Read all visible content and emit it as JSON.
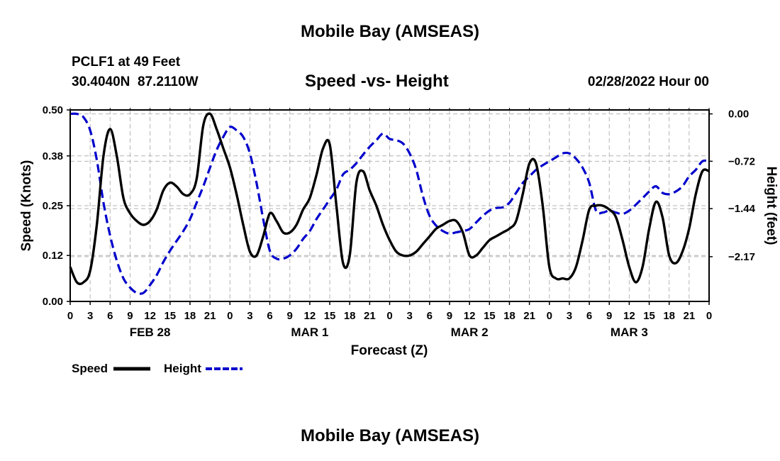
{
  "header": {
    "title": "Mobile Bay (AMSEAS)",
    "station": "PCLF1 at 49 Feet",
    "coords": "30.4040N  87.2110W",
    "subtitle": "Speed -vs- Height",
    "datetime": "02/28/2022 Hour 00"
  },
  "footer": {
    "title": "Mobile Bay (AMSEAS)"
  },
  "colors": {
    "speed": "#000000",
    "height": "#0000cc",
    "grid": "#b4b4b4"
  },
  "chart_data": {
    "type": "line",
    "title": "Speed -vs- Height",
    "xlabel": "Forecast (Z)",
    "ylabel": "Speed (Knots)",
    "y2label": "Height (feet)",
    "x_range_hours": [
      0,
      96
    ],
    "ylim": [
      0,
      0.5
    ],
    "y2lim": [
      -2.85,
      0.06
    ],
    "yticks": [
      0.0,
      0.12,
      0.25,
      0.38,
      0.5
    ],
    "ytick_labels": [
      "0.00",
      "0.12",
      "0.25",
      "0.38",
      "0.50"
    ],
    "y2ticks": [
      0.0,
      -0.72,
      -1.44,
      -2.17
    ],
    "y2tick_labels": [
      "0.00",
      "−0.72",
      "−1.44",
      "−2.17"
    ],
    "xtick_hours": [
      0,
      3,
      6,
      9,
      12,
      15,
      18,
      21,
      24,
      27,
      30,
      33,
      36,
      39,
      42,
      45,
      48,
      51,
      54,
      57,
      60,
      63,
      66,
      69,
      72,
      75,
      78,
      81,
      84,
      87,
      90,
      93,
      96
    ],
    "xtick_labels": [
      "0",
      "3",
      "6",
      "9",
      "12",
      "15",
      "18",
      "21",
      "0",
      "3",
      "6",
      "9",
      "12",
      "15",
      "18",
      "21",
      "0",
      "3",
      "6",
      "9",
      "12",
      "15",
      "18",
      "21",
      "0",
      "3",
      "6",
      "9",
      "12",
      "15",
      "18",
      "21",
      "0"
    ],
    "day_labels": [
      {
        "hour": 12,
        "label": "FEB 28"
      },
      {
        "hour": 36,
        "label": "MAR 1"
      },
      {
        "hour": 60,
        "label": "MAR 2"
      },
      {
        "hour": 84,
        "label": "MAR 3"
      }
    ],
    "legend": [
      {
        "name": "Speed",
        "style": "solid"
      },
      {
        "name": "Height",
        "style": "dashed"
      }
    ],
    "series": [
      {
        "name": "Speed",
        "axis": "left",
        "style": "solid",
        "points": [
          [
            0,
            0.09
          ],
          [
            1,
            0.05
          ],
          [
            2,
            0.05
          ],
          [
            3,
            0.08
          ],
          [
            4,
            0.2
          ],
          [
            5,
            0.38
          ],
          [
            6,
            0.45
          ],
          [
            7,
            0.38
          ],
          [
            8,
            0.27
          ],
          [
            9,
            0.23
          ],
          [
            10,
            0.21
          ],
          [
            11,
            0.2
          ],
          [
            12,
            0.21
          ],
          [
            13,
            0.24
          ],
          [
            14,
            0.29
          ],
          [
            15,
            0.31
          ],
          [
            16,
            0.3
          ],
          [
            17,
            0.28
          ],
          [
            18,
            0.28
          ],
          [
            19,
            0.32
          ],
          [
            20,
            0.46
          ],
          [
            21,
            0.49
          ],
          [
            22,
            0.45
          ],
          [
            23,
            0.4
          ],
          [
            24,
            0.35
          ],
          [
            25,
            0.28
          ],
          [
            26,
            0.2
          ],
          [
            27,
            0.13
          ],
          [
            28,
            0.12
          ],
          [
            29,
            0.17
          ],
          [
            30,
            0.23
          ],
          [
            31,
            0.21
          ],
          [
            32,
            0.18
          ],
          [
            33,
            0.18
          ],
          [
            34,
            0.2
          ],
          [
            35,
            0.24
          ],
          [
            36,
            0.27
          ],
          [
            37,
            0.33
          ],
          [
            38,
            0.4
          ],
          [
            39,
            0.41
          ],
          [
            40,
            0.25
          ],
          [
            41,
            0.1
          ],
          [
            42,
            0.12
          ],
          [
            43,
            0.31
          ],
          [
            44,
            0.34
          ],
          [
            45,
            0.29
          ],
          [
            46,
            0.25
          ],
          [
            47,
            0.2
          ],
          [
            48,
            0.16
          ],
          [
            49,
            0.13
          ],
          [
            50,
            0.12
          ],
          [
            51,
            0.12
          ],
          [
            52,
            0.13
          ],
          [
            53,
            0.15
          ],
          [
            54,
            0.17
          ],
          [
            55,
            0.19
          ],
          [
            56,
            0.2
          ],
          [
            57,
            0.21
          ],
          [
            58,
            0.21
          ],
          [
            59,
            0.18
          ],
          [
            60,
            0.12
          ],
          [
            61,
            0.12
          ],
          [
            62,
            0.14
          ],
          [
            63,
            0.16
          ],
          [
            64,
            0.17
          ],
          [
            65,
            0.18
          ],
          [
            66,
            0.19
          ],
          [
            67,
            0.21
          ],
          [
            68,
            0.28
          ],
          [
            69,
            0.36
          ],
          [
            70,
            0.36
          ],
          [
            71,
            0.25
          ],
          [
            72,
            0.09
          ],
          [
            73,
            0.06
          ],
          [
            74,
            0.06
          ],
          [
            75,
            0.06
          ],
          [
            76,
            0.09
          ],
          [
            77,
            0.16
          ],
          [
            78,
            0.24
          ],
          [
            79,
            0.25
          ],
          [
            80,
            0.25
          ],
          [
            81,
            0.24
          ],
          [
            82,
            0.22
          ],
          [
            83,
            0.16
          ],
          [
            84,
            0.09
          ],
          [
            85,
            0.05
          ],
          [
            86,
            0.09
          ],
          [
            87,
            0.19
          ],
          [
            88,
            0.26
          ],
          [
            89,
            0.22
          ],
          [
            90,
            0.12
          ],
          [
            91,
            0.1
          ],
          [
            92,
            0.13
          ],
          [
            93,
            0.19
          ],
          [
            94,
            0.28
          ],
          [
            95,
            0.34
          ],
          [
            96,
            0.34
          ]
        ]
      },
      {
        "name": "Height",
        "axis": "right",
        "style": "dashed",
        "points": [
          [
            0,
            0.0
          ],
          [
            1,
            0.0
          ],
          [
            2,
            -0.05
          ],
          [
            3,
            -0.25
          ],
          [
            4,
            -0.7
          ],
          [
            5,
            -1.35
          ],
          [
            6,
            -1.85
          ],
          [
            7,
            -2.23
          ],
          [
            8,
            -2.5
          ],
          [
            9,
            -2.64
          ],
          [
            10,
            -2.72
          ],
          [
            11,
            -2.72
          ],
          [
            12,
            -2.6
          ],
          [
            13,
            -2.45
          ],
          [
            14,
            -2.25
          ],
          [
            15,
            -2.08
          ],
          [
            16,
            -1.93
          ],
          [
            17,
            -1.78
          ],
          [
            18,
            -1.6
          ],
          [
            19,
            -1.35
          ],
          [
            20,
            -1.1
          ],
          [
            21,
            -0.82
          ],
          [
            22,
            -0.55
          ],
          [
            23,
            -0.35
          ],
          [
            24,
            -0.2
          ],
          [
            25,
            -0.25
          ],
          [
            26,
            -0.35
          ],
          [
            27,
            -0.6
          ],
          [
            28,
            -1.05
          ],
          [
            29,
            -1.6
          ],
          [
            30,
            -2.08
          ],
          [
            31,
            -2.2
          ],
          [
            32,
            -2.2
          ],
          [
            33,
            -2.15
          ],
          [
            34,
            -2.05
          ],
          [
            35,
            -1.9
          ],
          [
            36,
            -1.78
          ],
          [
            37,
            -1.6
          ],
          [
            38,
            -1.45
          ],
          [
            39,
            -1.3
          ],
          [
            40,
            -1.15
          ],
          [
            41,
            -0.92
          ],
          [
            42,
            -0.85
          ],
          [
            43,
            -0.75
          ],
          [
            44,
            -0.62
          ],
          [
            45,
            -0.5
          ],
          [
            46,
            -0.4
          ],
          [
            47,
            -0.3
          ],
          [
            48,
            -0.38
          ],
          [
            49,
            -0.4
          ],
          [
            50,
            -0.45
          ],
          [
            51,
            -0.6
          ],
          [
            52,
            -0.85
          ],
          [
            53,
            -1.25
          ],
          [
            54,
            -1.55
          ],
          [
            55,
            -1.7
          ],
          [
            56,
            -1.78
          ],
          [
            57,
            -1.82
          ],
          [
            58,
            -1.8
          ],
          [
            59,
            -1.78
          ],
          [
            60,
            -1.75
          ],
          [
            61,
            -1.65
          ],
          [
            62,
            -1.55
          ],
          [
            63,
            -1.47
          ],
          [
            64,
            -1.43
          ],
          [
            65,
            -1.42
          ],
          [
            66,
            -1.35
          ],
          [
            67,
            -1.2
          ],
          [
            68,
            -1.05
          ],
          [
            69,
            -0.95
          ],
          [
            70,
            -0.85
          ],
          [
            71,
            -0.78
          ],
          [
            72,
            -0.72
          ],
          [
            73,
            -0.66
          ],
          [
            74,
            -0.6
          ],
          [
            75,
            -0.6
          ],
          [
            76,
            -0.68
          ],
          [
            77,
            -0.82
          ],
          [
            78,
            -1.05
          ],
          [
            79,
            -1.47
          ],
          [
            80,
            -1.5
          ],
          [
            81,
            -1.47
          ],
          [
            82,
            -1.5
          ],
          [
            83,
            -1.52
          ],
          [
            84,
            -1.47
          ],
          [
            85,
            -1.38
          ],
          [
            86,
            -1.28
          ],
          [
            87,
            -1.18
          ],
          [
            88,
            -1.1
          ],
          [
            89,
            -1.2
          ],
          [
            90,
            -1.22
          ],
          [
            91,
            -1.18
          ],
          [
            92,
            -1.1
          ],
          [
            93,
            -0.95
          ],
          [
            94,
            -0.85
          ],
          [
            95,
            -0.72
          ],
          [
            96,
            -0.72
          ]
        ]
      }
    ]
  }
}
